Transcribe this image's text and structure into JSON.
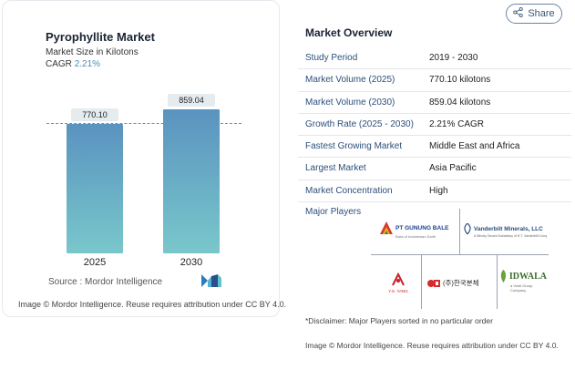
{
  "chart_card": {
    "title": "Pyrophyllite Market",
    "subtitle": "Market Size in Kilotons",
    "cagr_label": "CAGR",
    "cagr_value": "2.21%",
    "source": "Source :  Mordor Intelligence",
    "footer": "Image © Mordor Intelligence. Reuse requires attribution under CC BY 4.0."
  },
  "chart_data": {
    "type": "bar",
    "title": "Pyrophyllite Market",
    "subtitle": "Market Size in Kilotons",
    "categories": [
      "2025",
      "2030"
    ],
    "values": [
      770.1,
      859.04
    ],
    "value_labels": [
      "770.10",
      "859.04"
    ],
    "ylabel": "",
    "xlabel": "",
    "grid": false,
    "reference_line": "dashed line at 2025 value"
  },
  "share_button": {
    "label": "Share",
    "icon": "share-icon"
  },
  "overview": {
    "title": "Market Overview",
    "rows": [
      {
        "key": "Study Period",
        "value": "2019 - 2030"
      },
      {
        "key": "Market Volume (2025)",
        "value": "770.10 kilotons"
      },
      {
        "key": "Market Volume (2030)",
        "value": "859.04 kilotons"
      },
      {
        "key": "Growth Rate (2025 - 2030)",
        "value": "2.21% CAGR"
      },
      {
        "key": "Fastest Growing Market",
        "value": "Middle East and Africa"
      },
      {
        "key": "Largest Market",
        "value": "Asia Pacific"
      },
      {
        "key": "Market Concentration",
        "value": "High"
      }
    ],
    "major_players_title": "Major Players",
    "players": [
      {
        "name": "PT GUNUNG BALE",
        "tagline": "Bara of Indonesian Earth"
      },
      {
        "name": "Vanderbilt Minerals, LLC",
        "tagline": "A Wholly Owned Subsidiary of R.T. Vanderbilt Company, Inc."
      },
      {
        "name": "Y.S. YANG",
        "tagline": ""
      },
      {
        "name": "(주)한국분체",
        "tagline": ""
      },
      {
        "name": "IDWALA",
        "tagline": "a Vindi Group Company"
      }
    ],
    "disclaimer": "*Disclaimer: Major Players sorted in no particular order",
    "footer": "Image © Mordor Intelligence. Reuse requires attribution under CC BY 4.0."
  },
  "colors": {
    "bar_top": "#5a93c0",
    "bar_bottom": "#79c7cb",
    "dash_line": "#4aa0c8",
    "accent": "#4a8fb3",
    "key_text": "#2c4f7a"
  }
}
